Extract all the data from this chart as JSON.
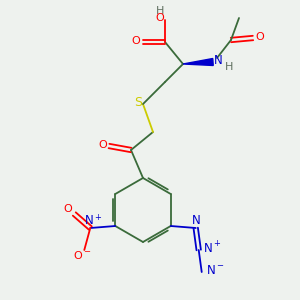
{
  "bg_color": "#eef2ee",
  "atom_colors": {
    "C": "#3a6b3a",
    "O": "#ff0000",
    "N": "#0000cc",
    "S": "#cccc00",
    "H": "#607060"
  }
}
